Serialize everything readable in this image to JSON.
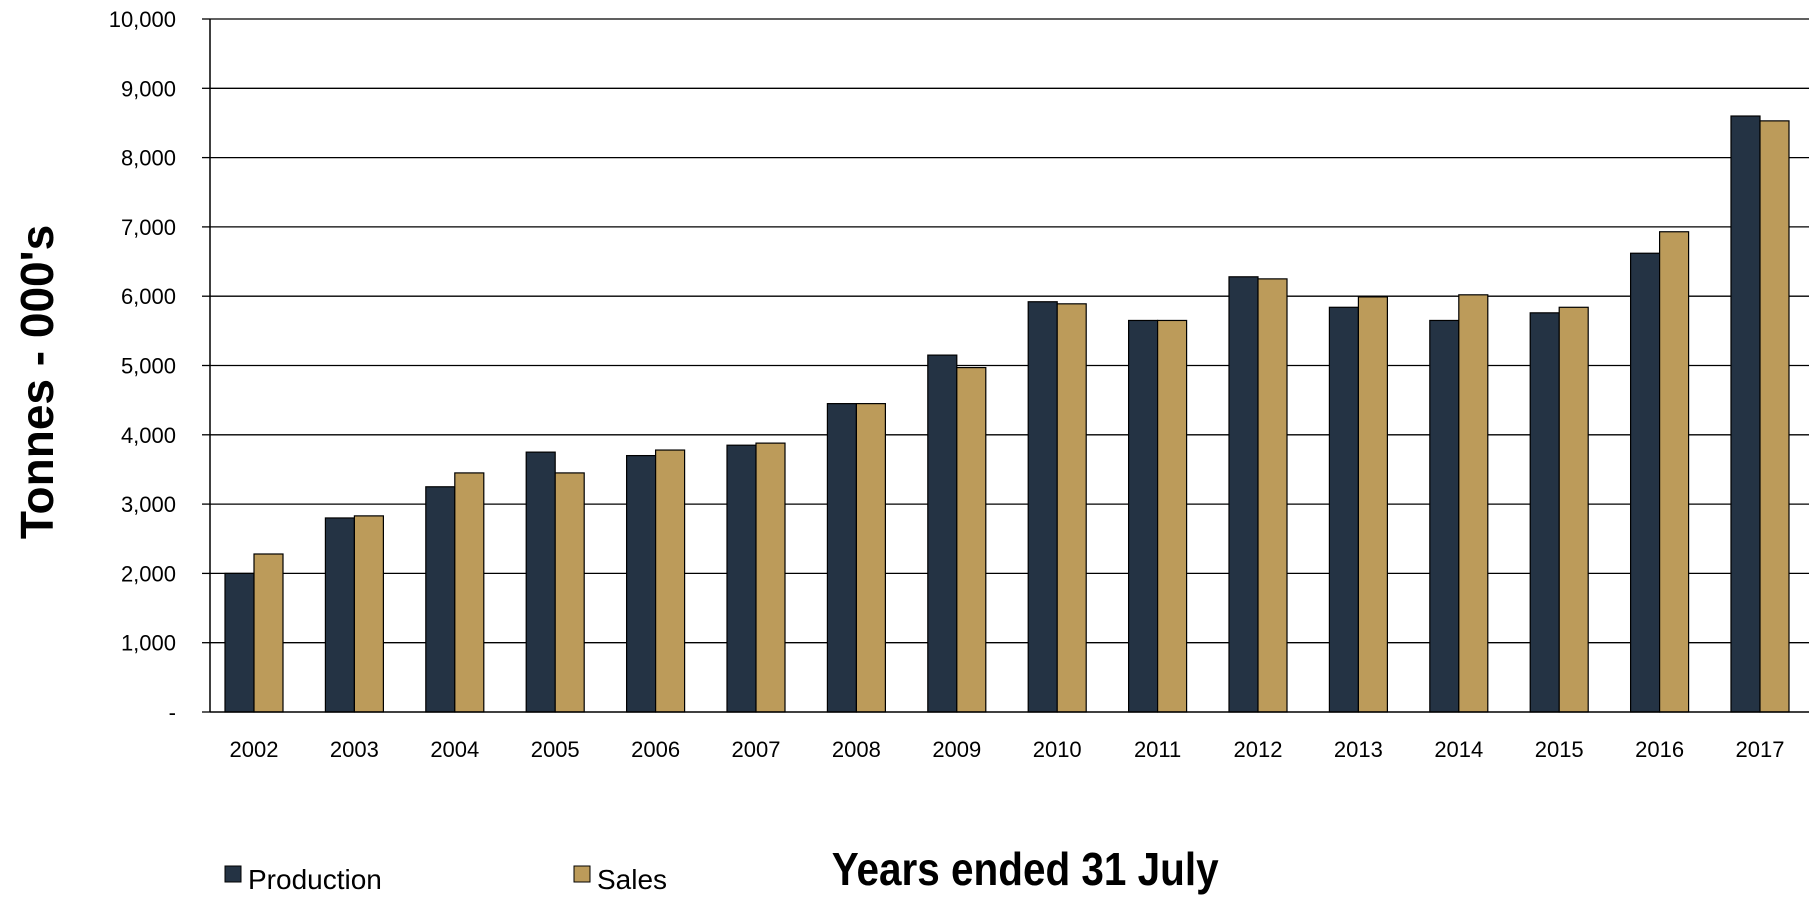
{
  "chart_data": {
    "type": "bar",
    "title": "",
    "xlabel": "Years ended 31 July",
    "ylabel": "Tonnes - 000's",
    "ylim": [
      0,
      10000
    ],
    "yticks": [
      0,
      1000,
      2000,
      3000,
      4000,
      5000,
      6000,
      7000,
      8000,
      9000,
      10000
    ],
    "ytick_labels": [
      "-",
      "1,000",
      "2,000",
      "3,000",
      "4,000",
      "5,000",
      "6,000",
      "7,000",
      "8,000",
      "9,000",
      "10,000"
    ],
    "grid": true,
    "legend_position": "bottom-left",
    "categories": [
      "2002",
      "2003",
      "2004",
      "2005",
      "2006",
      "2007",
      "2008",
      "2009",
      "2010",
      "2011",
      "2012",
      "2013",
      "2014",
      "2015",
      "2016",
      "2017"
    ],
    "series": [
      {
        "name": "Production",
        "color": "#243344",
        "values": [
          2000,
          2800,
          3250,
          3750,
          3700,
          3850,
          4450,
          5150,
          5920,
          5650,
          6280,
          5840,
          5650,
          5760,
          6620,
          8600
        ]
      },
      {
        "name": "Sales",
        "color": "#BC9B5A",
        "values": [
          2280,
          2830,
          3450,
          3450,
          3780,
          3880,
          4450,
          4970,
          5890,
          5650,
          6250,
          5990,
          6020,
          5840,
          6930,
          8530
        ]
      }
    ]
  }
}
